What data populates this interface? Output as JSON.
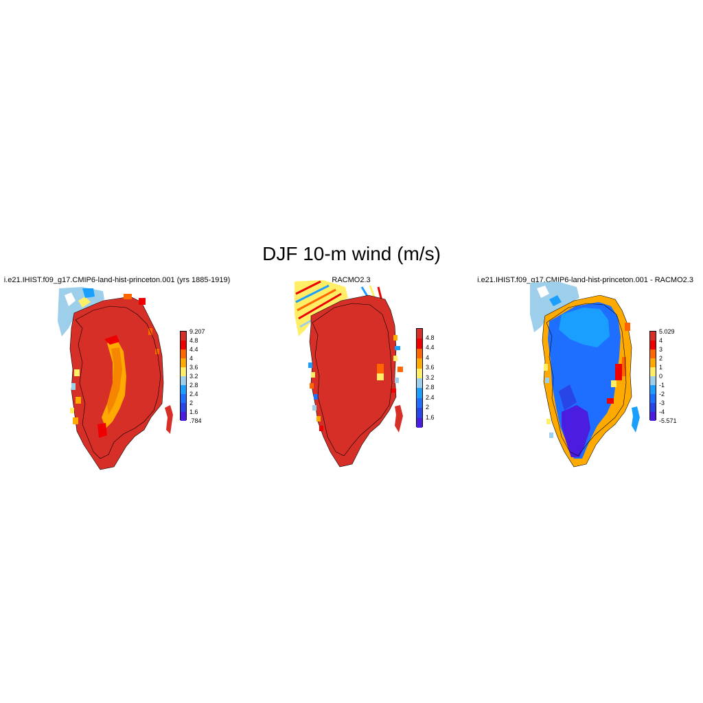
{
  "title": "DJF 10-m wind (m/s)",
  "panels": [
    {
      "title": "i.e21.IHIST.f09_g17.CMIP6-land-hist-princeton.001 (yrs 1885-1919)",
      "colorbar": {
        "labels": [
          "9.207",
          "4.8",
          "4.4",
          "4",
          "3.6",
          "3.2",
          "2.8",
          "2.4",
          "2",
          "1.6",
          ".784"
        ],
        "colors": [
          "#d62f27",
          "#ee0000",
          "#ff6600",
          "#ffaa00",
          "#ffee66",
          "#9ecfea",
          "#1a9fff",
          "#1e6eff",
          "#2846e8",
          "#4b1de0"
        ]
      }
    },
    {
      "title": "RACMO2.3",
      "colorbar": {
        "labels": [
          "4.8",
          "4.4",
          "4",
          "3.6",
          "3.2",
          "2.8",
          "2.4",
          "2",
          "1.6"
        ],
        "colors": [
          "#d62f27",
          "#ee0000",
          "#ff6600",
          "#ffaa00",
          "#ffee66",
          "#9ecfea",
          "#1a9fff",
          "#1e6eff",
          "#2846e8",
          "#4b1de0"
        ]
      }
    },
    {
      "title": "i.e21.IHIST.f09_g17.CMIP6-land-hist-princeton.001 - RACMO2.3",
      "colorbar": {
        "labels": [
          "5.029",
          "4",
          "3",
          "2",
          "1",
          "0",
          "-1",
          "-2",
          "-3",
          "-4",
          "-5.571"
        ],
        "colors": [
          "#d62f27",
          "#ee0000",
          "#ff6600",
          "#ffaa00",
          "#ffee66",
          "#9ecfea",
          "#1a9fff",
          "#1e6eff",
          "#2846e8",
          "#4b1de0"
        ]
      }
    }
  ]
}
